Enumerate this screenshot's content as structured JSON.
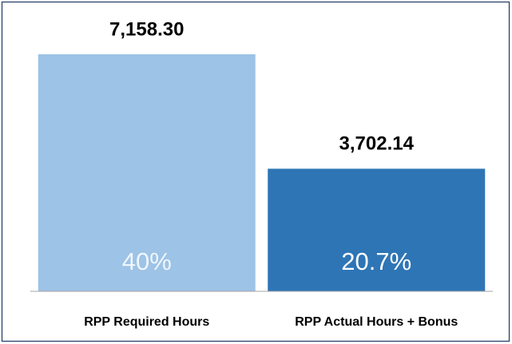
{
  "chart_data": {
    "type": "bar",
    "categories": [
      "RPP Required Hours",
      "RPP Actual Hours + Bonus"
    ],
    "values": [
      7158.3,
      3702.14
    ],
    "value_labels": [
      "7,158.30",
      "3,702.14"
    ],
    "colors": [
      "#9dc3e6",
      "#2e75b6"
    ],
    "shares": {
      "values": [
        40,
        20.7
      ],
      "value_labels": [
        "40%",
        "20.7%"
      ]
    }
  }
}
